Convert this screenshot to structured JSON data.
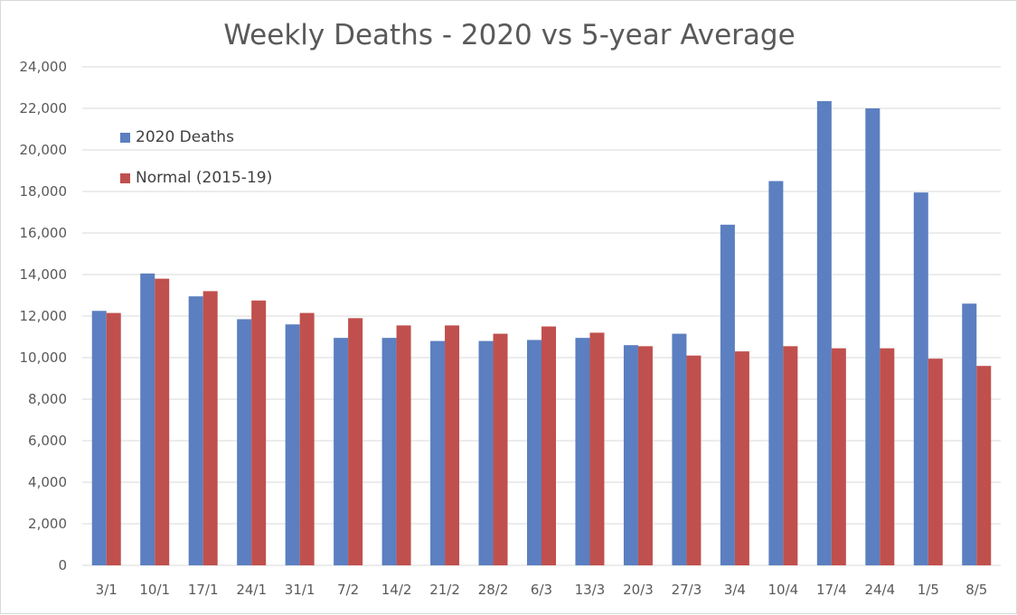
{
  "chart_data": {
    "type": "bar",
    "title": "Weekly Deaths - 2020 vs 5-year Average",
    "xlabel": "",
    "ylabel": "",
    "ylim": [
      0,
      24000
    ],
    "yticks": [
      0,
      2000,
      4000,
      6000,
      8000,
      10000,
      12000,
      14000,
      16000,
      18000,
      20000,
      22000,
      24000
    ],
    "ytick_labels": [
      "0",
      "2,000",
      "4,000",
      "6,000",
      "8,000",
      "10,000",
      "12,000",
      "14,000",
      "16,000",
      "18,000",
      "20,000",
      "22,000",
      "24,000"
    ],
    "grid": true,
    "legend_position": "top-left",
    "categories": [
      "3/1",
      "10/1",
      "17/1",
      "24/1",
      "31/1",
      "7/2",
      "14/2",
      "21/2",
      "28/2",
      "6/3",
      "13/3",
      "20/3",
      "27/3",
      "3/4",
      "10/4",
      "17/4",
      "24/4",
      "1/5",
      "8/5"
    ],
    "series": [
      {
        "name": "2020 Deaths",
        "color": "#5b7fc0",
        "values": [
          12250,
          14050,
          12950,
          11850,
          11600,
          10950,
          10950,
          10800,
          10800,
          10850,
          10950,
          10600,
          11150,
          16400,
          18500,
          22350,
          22000,
          17950,
          12600
        ]
      },
      {
        "name": "Normal (2015-19)",
        "color": "#c0504d",
        "values": [
          12150,
          13800,
          13200,
          12750,
          12150,
          11900,
          11550,
          11550,
          11150,
          11500,
          11200,
          10550,
          10100,
          10300,
          10550,
          10450,
          10450,
          9950,
          9600
        ]
      }
    ]
  }
}
